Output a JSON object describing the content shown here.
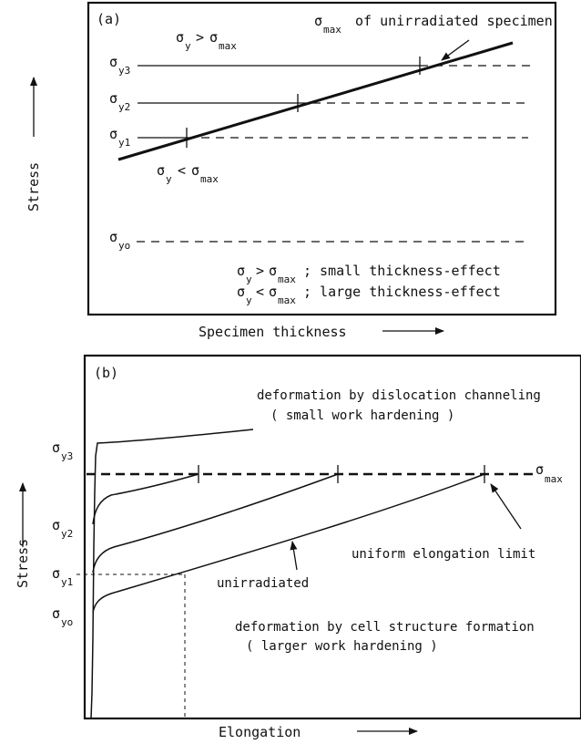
{
  "panel_a": {
    "label": "(a)",
    "y_axis_label": "Stress",
    "x_axis_label": "Specimen thickness",
    "sigma": "σ",
    "sub_y": "y",
    "sub_y3": "y3",
    "sub_y2": "y2",
    "sub_y1": "y1",
    "sub_yo": "yo",
    "sub_max": "max",
    "rel_gt": ">",
    "rel_lt": "<",
    "max_line_note": "of unirradiated specimen",
    "legend_1": "; small thickness-effect",
    "legend_2": "; large thickness-effect"
  },
  "panel_b": {
    "label": "(b)",
    "y_axis_label": "Stress",
    "x_axis_label": "Elongation",
    "sigma": "σ",
    "sub_y3": "y3",
    "sub_y2": "y2",
    "sub_y1": "y1",
    "sub_yo": "yo",
    "sub_max": "max",
    "channeling_line1": "deformation by dislocation channeling",
    "channeling_line2": "( small work hardening )",
    "uniform_limit": "uniform elongation limit",
    "unirradiated": "unirradiated",
    "cell_line1": "deformation by cell structure formation",
    "cell_line2": "( larger work hardening )"
  }
}
